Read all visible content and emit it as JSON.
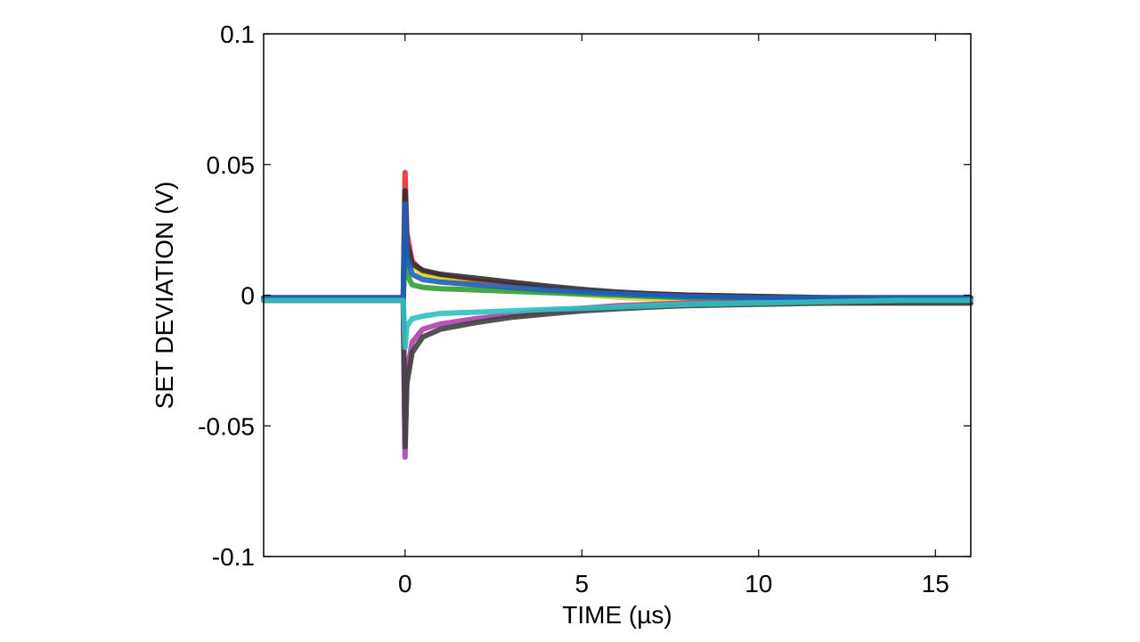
{
  "chart_data": {
    "type": "line",
    "title": "",
    "xlabel": "TIME (µs)",
    "ylabel": "SET DEVIATION (V)",
    "xlim": [
      -4,
      16
    ],
    "ylim": [
      -0.1,
      0.1
    ],
    "xticks": [
      0,
      5,
      10,
      15
    ],
    "xtick_labels": [
      "0",
      "5",
      "10",
      "15"
    ],
    "yticks": [
      -0.1,
      -0.05,
      0,
      0.05,
      0.1
    ],
    "ytick_labels": [
      "-0.1",
      "-0.05",
      "0",
      "0.05",
      "0.1"
    ],
    "grid": false,
    "legend": "none",
    "series": [
      {
        "color": "#e03030",
        "x": [
          -4,
          -0.05,
          0,
          0.05,
          0.2,
          0.5,
          1,
          2,
          3,
          4,
          5,
          6,
          7,
          8,
          10,
          12,
          14,
          16
        ],
        "y": [
          -0.001,
          -0.001,
          0.047,
          0.024,
          0.013,
          0.009,
          0.0075,
          0.0055,
          0.004,
          0.0025,
          0.0015,
          0.0008,
          0.0003,
          0.0,
          -0.0005,
          -0.001,
          -0.001,
          -0.001
        ]
      },
      {
        "color": "#d8d830",
        "x": [
          -4,
          -0.05,
          0,
          0.05,
          0.2,
          0.5,
          1,
          2,
          3,
          4,
          5,
          6,
          7,
          8,
          10,
          12,
          14,
          16
        ],
        "y": [
          -0.002,
          -0.002,
          0.03,
          0.018,
          0.011,
          0.008,
          0.006,
          0.004,
          0.0025,
          0.0012,
          0.0002,
          -0.0008,
          -0.0015,
          -0.002,
          -0.003,
          -0.003,
          -0.003,
          -0.003
        ]
      },
      {
        "color": "#30a030",
        "x": [
          -4,
          -0.05,
          0,
          0.05,
          0.2,
          0.5,
          1,
          2,
          3,
          4,
          5,
          6,
          7,
          8,
          10,
          12,
          14,
          16
        ],
        "y": [
          -0.002,
          -0.002,
          0.02,
          0.008,
          0.004,
          0.003,
          0.0025,
          0.002,
          0.0015,
          0.001,
          0.0005,
          0.0,
          -0.0005,
          -0.001,
          -0.0015,
          -0.002,
          -0.002,
          -0.002
        ]
      },
      {
        "color": "#303030",
        "x": [
          -4,
          -0.05,
          0,
          0.05,
          0.2,
          0.5,
          1,
          2,
          3,
          4,
          5,
          6,
          7,
          8,
          10,
          12,
          14,
          16
        ],
        "y": [
          -0.001,
          -0.001,
          0.04,
          0.02,
          0.012,
          0.0095,
          0.008,
          0.0065,
          0.005,
          0.0035,
          0.0022,
          0.0012,
          0.0005,
          0.0,
          -0.0005,
          -0.001,
          -0.001,
          -0.001
        ]
      },
      {
        "color": "#2060c0",
        "x": [
          -4,
          -0.05,
          0,
          0.05,
          0.2,
          0.5,
          1,
          2,
          3,
          4,
          5,
          6,
          7,
          8,
          10,
          12,
          14,
          16
        ],
        "y": [
          -0.001,
          -0.001,
          0.035,
          0.015,
          0.008,
          0.006,
          0.005,
          0.004,
          0.003,
          0.002,
          0.0012,
          0.0005,
          0.0,
          -0.0005,
          -0.001,
          -0.001,
          -0.001,
          -0.001
        ]
      },
      {
        "color": "#b040b0",
        "x": [
          -4,
          -0.05,
          0,
          0.05,
          0.2,
          0.5,
          1,
          2,
          3,
          4,
          5,
          6,
          7,
          8,
          10,
          12,
          14,
          16
        ],
        "y": [
          -0.002,
          -0.002,
          -0.062,
          -0.03,
          -0.018,
          -0.013,
          -0.011,
          -0.009,
          -0.0075,
          -0.006,
          -0.005,
          -0.004,
          -0.0035,
          -0.003,
          -0.003,
          -0.003,
          -0.003,
          -0.003
        ]
      },
      {
        "color": "#404040",
        "x": [
          -4,
          -0.05,
          0,
          0.05,
          0.2,
          0.5,
          1,
          2,
          3,
          4,
          5,
          6,
          7,
          8,
          10,
          12,
          14,
          16
        ],
        "y": [
          -0.002,
          -0.002,
          -0.058,
          -0.034,
          -0.022,
          -0.016,
          -0.013,
          -0.0105,
          -0.0085,
          -0.0072,
          -0.006,
          -0.0052,
          -0.0045,
          -0.004,
          -0.0035,
          -0.003,
          -0.003,
          -0.003
        ]
      },
      {
        "color": "#30c0c0",
        "x": [
          -4,
          -0.05,
          0,
          0.05,
          0.2,
          0.5,
          1,
          2,
          3,
          4,
          5,
          6,
          7,
          8,
          10,
          12,
          14,
          16
        ],
        "y": [
          -0.002,
          -0.002,
          -0.02,
          -0.012,
          -0.009,
          -0.008,
          -0.007,
          -0.0065,
          -0.006,
          -0.0055,
          -0.005,
          -0.0045,
          -0.004,
          -0.0035,
          -0.003,
          -0.0025,
          -0.002,
          -0.002
        ]
      }
    ]
  }
}
